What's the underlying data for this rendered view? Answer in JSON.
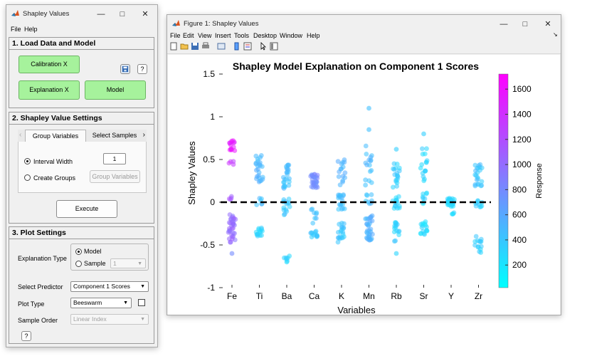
{
  "app": {
    "title": "Shapley Values",
    "menus": [
      "File",
      "Help"
    ],
    "section1": {
      "title": "1. Load Data and Model",
      "calibration_label": "Calibration X",
      "explanation_label": "Explanation X",
      "model_label": "Model",
      "help_label": "?"
    },
    "section2": {
      "title": "2. Shapley Value Settings",
      "tabs": [
        "Group Variables",
        "Select Samples"
      ],
      "interval_width_label": "Interval Width",
      "interval_width_value": "1",
      "create_groups_label": "Create Groups",
      "group_variables_button": "Group Variables",
      "execute_label": "Execute"
    },
    "section3": {
      "title": "3. Plot Settings",
      "explanation_type_label": "Explanation Type",
      "model_option": "Model",
      "sample_option": "Sample",
      "sample_value": "1",
      "select_predictor_label": "Select Predictor",
      "predictor_value": "Component 1 Scores",
      "plot_type_label": "Plot Type",
      "plot_type_value": "Beeswarm",
      "sample_order_label": "Sample Order",
      "sample_order_value": "Linear Index",
      "help_label": "?"
    }
  },
  "figure": {
    "title": "Figure 1: Shapley Values",
    "menus": [
      "File",
      "Edit",
      "View",
      "Insert",
      "Tools",
      "Desktop",
      "Window",
      "Help"
    ]
  },
  "chart_data": {
    "type": "scatter",
    "subtype": "beeswarm",
    "title": "Shapley Model Explanation on Component 1 Scores",
    "xlabel": "Variables",
    "ylabel": "Shapley Values",
    "categories": [
      "Fe",
      "Ti",
      "Ba",
      "Ca",
      "K",
      "Mn",
      "Rb",
      "Sr",
      "Y",
      "Zr"
    ],
    "ylim": [
      -1,
      1.5
    ],
    "yticks": [
      "1.5",
      "1",
      "0.5",
      "0",
      "-0.5",
      "-1"
    ],
    "reference_line": 0,
    "colorbar": {
      "label": "Response",
      "ticks": [
        "1600",
        "1400",
        "1200",
        "1000",
        "800",
        "600",
        "400",
        "200"
      ],
      "tick_values": [
        1600,
        1400,
        1200,
        1000,
        800,
        600,
        400,
        200
      ],
      "range": [
        20,
        1720
      ],
      "colors": [
        "#00ffff",
        "#ff00ff"
      ]
    },
    "clusters": [
      {
        "variable": "Fe",
        "y": 0.65,
        "spread": 0.07,
        "n": 14,
        "response": 1550
      },
      {
        "variable": "Fe",
        "y": 0.45,
        "spread": 0.04,
        "n": 4,
        "response": 1350
      },
      {
        "variable": "Fe",
        "y": 0.05,
        "spread": 0.02,
        "n": 4,
        "response": 1150
      },
      {
        "variable": "Fe",
        "y": -0.3,
        "spread": 0.17,
        "n": 34,
        "response": 1000
      },
      {
        "variable": "Ti",
        "y": 0.35,
        "spread": 0.2,
        "n": 24,
        "response": 500
      },
      {
        "variable": "Ti",
        "y": 0.0,
        "spread": 0.05,
        "n": 6,
        "response": 450
      },
      {
        "variable": "Ti",
        "y": -0.35,
        "spread": 0.05,
        "n": 14,
        "response": 300
      },
      {
        "variable": "Ba",
        "y": 0.3,
        "spread": 0.14,
        "n": 24,
        "response": 450
      },
      {
        "variable": "Ba",
        "y": -0.05,
        "spread": 0.1,
        "n": 14,
        "response": 400
      },
      {
        "variable": "Ba",
        "y": -0.65,
        "spread": 0.04,
        "n": 6,
        "response": 300
      },
      {
        "variable": "Ca",
        "y": 0.25,
        "spread": 0.08,
        "n": 28,
        "response": 800
      },
      {
        "variable": "Ca",
        "y": -0.15,
        "spread": 0.1,
        "n": 8,
        "response": 450
      },
      {
        "variable": "Ca",
        "y": -0.38,
        "spread": 0.04,
        "n": 12,
        "response": 400
      },
      {
        "variable": "K",
        "y": 0.35,
        "spread": 0.15,
        "n": 16,
        "response": 500
      },
      {
        "variable": "K",
        "y": 0.0,
        "spread": 0.1,
        "n": 18,
        "response": 450
      },
      {
        "variable": "K",
        "y": -0.35,
        "spread": 0.12,
        "n": 20,
        "response": 400
      },
      {
        "variable": "Mn",
        "y": 0.45,
        "spread": 0.25,
        "n": 16,
        "response": 500
      },
      {
        "variable": "Mn",
        "y": 0.05,
        "spread": 0.08,
        "n": 8,
        "response": 450
      },
      {
        "variable": "Mn",
        "y": -0.3,
        "spread": 0.15,
        "n": 32,
        "response": 550
      },
      {
        "variable": "Rb",
        "y": 0.3,
        "spread": 0.16,
        "n": 18,
        "response": 350
      },
      {
        "variable": "Rb",
        "y": 0.0,
        "spread": 0.08,
        "n": 14,
        "response": 300
      },
      {
        "variable": "Rb",
        "y": -0.35,
        "spread": 0.13,
        "n": 16,
        "response": 350
      },
      {
        "variable": "Sr",
        "y": 0.45,
        "spread": 0.2,
        "n": 16,
        "response": 300
      },
      {
        "variable": "Sr",
        "y": 0.05,
        "spread": 0.08,
        "n": 8,
        "response": 300
      },
      {
        "variable": "Sr",
        "y": -0.3,
        "spread": 0.08,
        "n": 16,
        "response": 250
      },
      {
        "variable": "Y",
        "y": 0.0,
        "spread": 0.05,
        "n": 24,
        "response": 300
      },
      {
        "variable": "Y",
        "y": -0.1,
        "spread": 0.04,
        "n": 4,
        "response": 300
      },
      {
        "variable": "Zr",
        "y": 0.3,
        "spread": 0.15,
        "n": 22,
        "response": 400
      },
      {
        "variable": "Zr",
        "y": 0.0,
        "spread": 0.07,
        "n": 10,
        "response": 350
      },
      {
        "variable": "Zr",
        "y": -0.5,
        "spread": 0.1,
        "n": 14,
        "response": 350
      }
    ],
    "extra_points": [
      {
        "variable": "Mn",
        "y": 1.1,
        "response": 450
      },
      {
        "variable": "Mn",
        "y": 0.85,
        "response": 450
      },
      {
        "variable": "Sr",
        "y": 0.8,
        "response": 350
      },
      {
        "variable": "Rb",
        "y": 0.62,
        "response": 350
      },
      {
        "variable": "Fe",
        "y": -0.6,
        "response": 800
      },
      {
        "variable": "Rb",
        "y": -0.6,
        "response": 300
      },
      {
        "variable": "Ba",
        "y": -0.7,
        "response": 250
      }
    ]
  }
}
